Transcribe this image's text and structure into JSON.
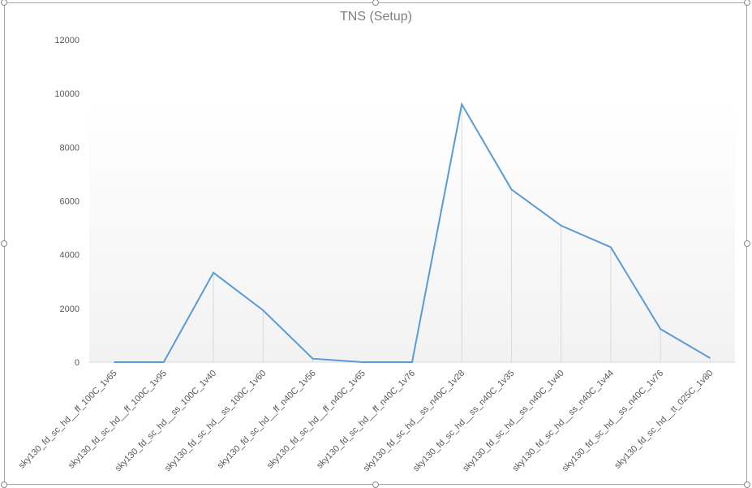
{
  "chart_data": {
    "type": "line",
    "title": "TNS (Setup)",
    "xlabel": "",
    "ylabel": "",
    "ylim": [
      0,
      12000
    ],
    "yticks": [
      0,
      2000,
      4000,
      6000,
      8000,
      10000,
      12000
    ],
    "grid": false,
    "legend": "none",
    "categories": [
      "sky130_fd_sc_hd__ff_100C_1v65",
      "sky130_fd_sc_hd__ff_100C_1v95",
      "sky130_fd_sc_hd__ss_100C_1v40",
      "sky130_fd_sc_hd__ss_100C_1v60",
      "sky130_fd_sc_hd__ff_n40C_1v56",
      "sky130_fd_sc_hd__ff_n40C_1v65",
      "sky130_fd_sc_hd__ff_n40C_1v76",
      "sky130_fd_sc_hd__ss_n40C_1v28",
      "sky130_fd_sc_hd__ss_n40C_1v35",
      "sky130_fd_sc_hd__ss_n40C_1v40",
      "sky130_fd_sc_hd__ss_n40C_1v44",
      "sky130_fd_sc_hd__ss_n40C_1v76",
      "sky130_fd_sc_hd__tt_025C_1v80"
    ],
    "series": [
      {
        "values": [
          0,
          0,
          3330,
          1930,
          130,
          0,
          0,
          9600,
          6430,
          5080,
          4280,
          1230,
          150
        ]
      }
    ],
    "colors": {
      "line": "#5b9bd5",
      "drop_line": "#d9d9d9",
      "axis": "#d9d9d9",
      "plot_gradient_top": "#ffffff",
      "plot_gradient_bottom": "#f2f2f2"
    }
  }
}
